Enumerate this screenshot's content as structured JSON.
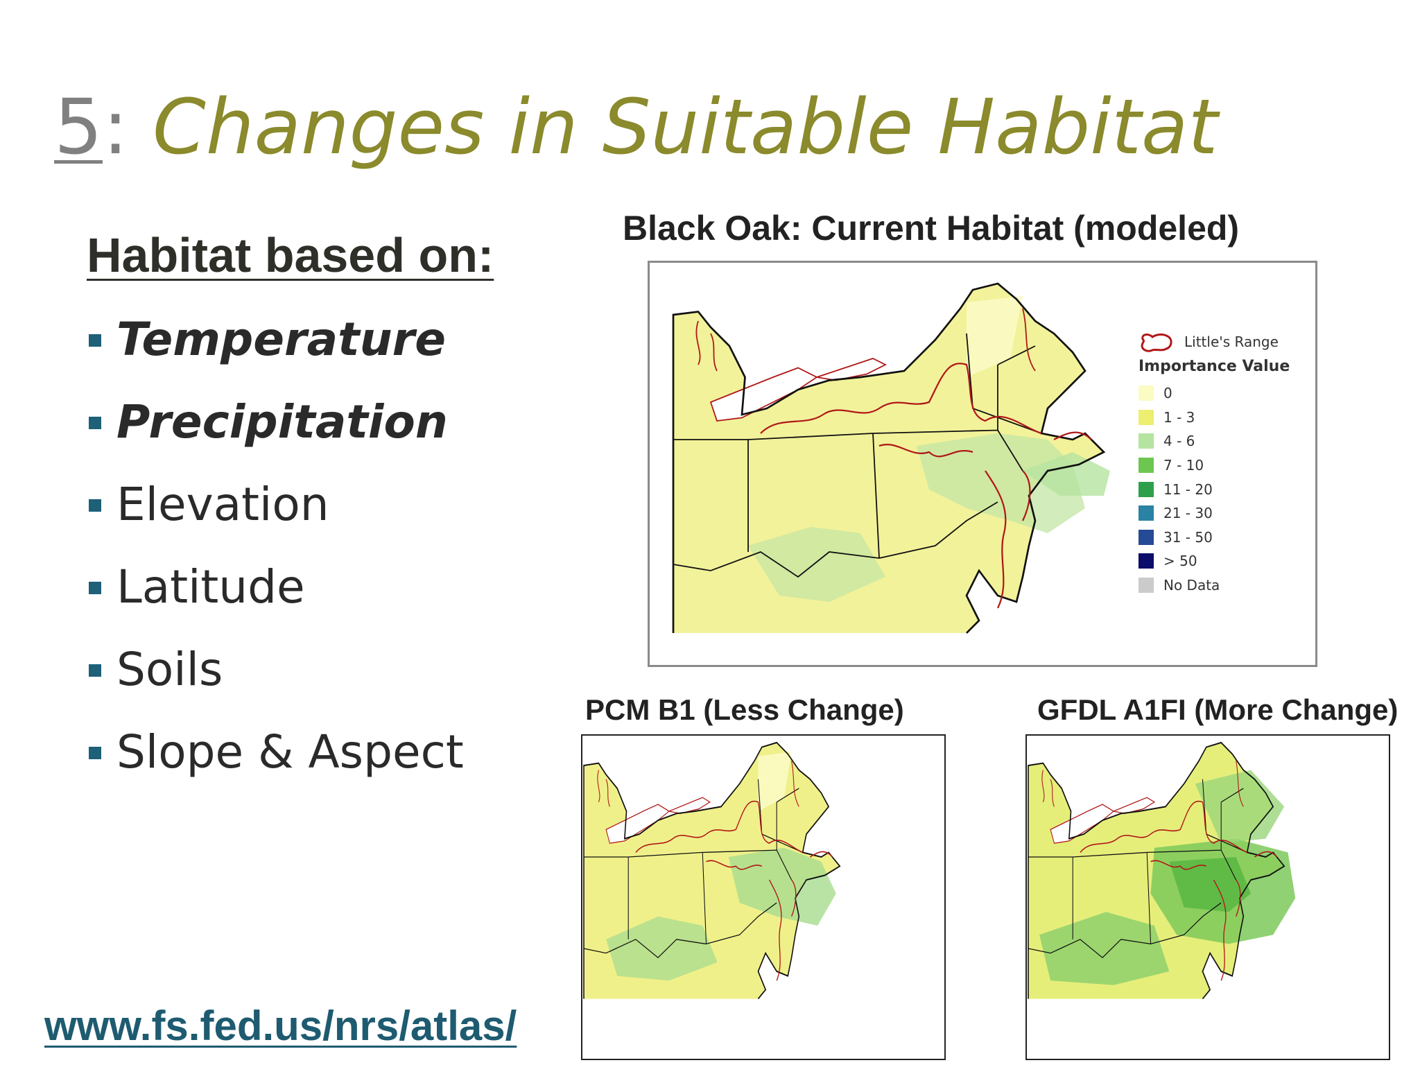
{
  "slide": {
    "title_number": "5",
    "title_colon": ":",
    "title_text": "Changes in Suitable Habitat"
  },
  "left": {
    "heading": "Habitat based on:",
    "factors": [
      {
        "label": "Temperature",
        "emphasis": true
      },
      {
        "label": "Precipitation",
        "emphasis": true
      },
      {
        "label": "Elevation",
        "emphasis": false
      },
      {
        "label": "Latitude",
        "emphasis": false
      },
      {
        "label": "Soils",
        "emphasis": false
      },
      {
        "label": "Slope & Aspect",
        "emphasis": false
      }
    ],
    "url": "www.fs.fed.us/nrs/atlas/"
  },
  "maps": {
    "current": {
      "caption": "Black Oak: Current Habitat (modeled)"
    },
    "pcm": {
      "caption": "PCM B1 (Less Change)"
    },
    "gfdl": {
      "caption": "GFDL A1FI (More Change)"
    }
  },
  "legend": {
    "range_label": "Little's Range",
    "range_color": "#b01818",
    "title": "Importance Value",
    "classes": [
      {
        "label": "0",
        "color": "#fbfbc4"
      },
      {
        "label": "1 - 3",
        "color": "#eeee70"
      },
      {
        "label": "4 - 6",
        "color": "#b5e3a0"
      },
      {
        "label": "7 - 10",
        "color": "#6cc650"
      },
      {
        "label": "11 - 20",
        "color": "#2ea04c"
      },
      {
        "label": "21 - 30",
        "color": "#2a82a4"
      },
      {
        "label": "31 - 50",
        "color": "#254a96"
      },
      {
        "label": "> 50",
        "color": "#0c0c6a"
      },
      {
        "label": "No Data",
        "color": "#cbcbcb"
      }
    ]
  },
  "colors": {
    "title_accent": "#8b8a2c",
    "bullet": "#1d6078",
    "url": "#1e5b70"
  }
}
